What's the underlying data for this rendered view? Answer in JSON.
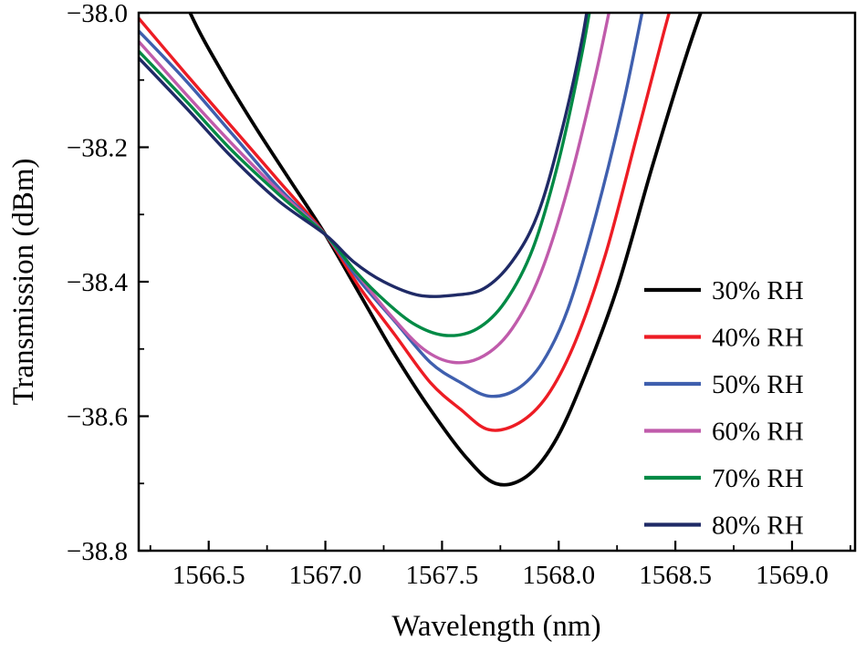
{
  "figure": {
    "background": "#ffffff",
    "frame_color": "#000000"
  },
  "chart_data": {
    "type": "line",
    "title": "",
    "xlabel": "Wavelength (nm)",
    "ylabel": "Transmission (dBm)",
    "xlim": [
      1566.2,
      1569.27
    ],
    "ylim": [
      -38.8,
      -38.0
    ],
    "grid": false,
    "legend_position": "right-middle",
    "x_major_ticks": [
      1566.5,
      1567.0,
      1567.5,
      1568.0,
      1568.5,
      1569.0
    ],
    "x_tick_labels": [
      "1566.5",
      "1567.0",
      "1567.5",
      "1568.0",
      "1568.5",
      "1569.0"
    ],
    "x_minor_ticks": [
      1566.25,
      1566.75,
      1567.25,
      1567.75,
      1568.25,
      1568.75,
      1569.25
    ],
    "y_major_ticks": [
      -38.0,
      -38.2,
      -38.4,
      -38.6,
      -38.8
    ],
    "y_tick_labels": [
      "−38.0",
      "−38.2",
      "−38.4",
      "−38.6",
      "−38.8"
    ],
    "y_minor_ticks": [
      -38.1,
      -38.3,
      -38.5,
      -38.7
    ],
    "crossing_point": {
      "x": 1567.0,
      "y": -38.33
    },
    "series": [
      {
        "name": "30% RH",
        "color": "#000000",
        "dip_min": {
          "x": 1567.73,
          "y": -38.7
        },
        "points": [
          [
            1566.28,
            -37.88
          ],
          [
            1566.42,
            -38.0
          ],
          [
            1566.56,
            -38.09
          ],
          [
            1566.7,
            -38.17
          ],
          [
            1566.85,
            -38.25
          ],
          [
            1567.0,
            -38.33
          ],
          [
            1567.15,
            -38.42
          ],
          [
            1567.3,
            -38.51
          ],
          [
            1567.45,
            -38.59
          ],
          [
            1567.6,
            -38.66
          ],
          [
            1567.73,
            -38.7
          ],
          [
            1567.86,
            -38.69
          ],
          [
            1567.98,
            -38.64
          ],
          [
            1568.1,
            -38.55
          ],
          [
            1568.25,
            -38.41
          ],
          [
            1568.4,
            -38.23
          ],
          [
            1568.55,
            -38.06
          ],
          [
            1568.66,
            -37.95
          ]
        ]
      },
      {
        "name": "40% RH",
        "color": "#ed1c24",
        "dip_min": {
          "x": 1567.7,
          "y": -38.62
        },
        "points": [
          [
            1566.18,
            -38.0
          ],
          [
            1566.4,
            -38.09
          ],
          [
            1566.6,
            -38.17
          ],
          [
            1566.8,
            -38.25
          ],
          [
            1567.0,
            -38.33
          ],
          [
            1567.15,
            -38.41
          ],
          [
            1567.3,
            -38.48
          ],
          [
            1567.45,
            -38.55
          ],
          [
            1567.58,
            -38.59
          ],
          [
            1567.7,
            -38.62
          ],
          [
            1567.83,
            -38.61
          ],
          [
            1567.95,
            -38.57
          ],
          [
            1568.07,
            -38.49
          ],
          [
            1568.2,
            -38.36
          ],
          [
            1568.33,
            -38.19
          ],
          [
            1568.45,
            -38.03
          ],
          [
            1568.52,
            -37.94
          ]
        ]
      },
      {
        "name": "50% RH",
        "color": "#3f5fae",
        "dip_min": {
          "x": 1567.7,
          "y": -38.57
        },
        "points": [
          [
            1566.18,
            -38.02
          ],
          [
            1566.4,
            -38.1
          ],
          [
            1566.6,
            -38.18
          ],
          [
            1566.8,
            -38.26
          ],
          [
            1567.0,
            -38.33
          ],
          [
            1567.15,
            -38.4
          ],
          [
            1567.3,
            -38.46
          ],
          [
            1567.45,
            -38.52
          ],
          [
            1567.58,
            -38.55
          ],
          [
            1567.7,
            -38.57
          ],
          [
            1567.82,
            -38.56
          ],
          [
            1567.93,
            -38.52
          ],
          [
            1568.04,
            -38.44
          ],
          [
            1568.16,
            -38.3
          ],
          [
            1568.28,
            -38.13
          ],
          [
            1568.38,
            -37.96
          ]
        ]
      },
      {
        "name": "60% RH",
        "color": "#c05bab",
        "dip_min": {
          "x": 1567.55,
          "y": -38.52
        },
        "points": [
          [
            1566.18,
            -38.035
          ],
          [
            1566.4,
            -38.12
          ],
          [
            1566.6,
            -38.195
          ],
          [
            1566.8,
            -38.265
          ],
          [
            1567.0,
            -38.33
          ],
          [
            1567.14,
            -38.39
          ],
          [
            1567.28,
            -38.45
          ],
          [
            1567.42,
            -38.5
          ],
          [
            1567.55,
            -38.52
          ],
          [
            1567.68,
            -38.51
          ],
          [
            1567.8,
            -38.47
          ],
          [
            1567.92,
            -38.39
          ],
          [
            1568.04,
            -38.26
          ],
          [
            1568.16,
            -38.09
          ],
          [
            1568.25,
            -37.94
          ]
        ]
      },
      {
        "name": "70% RH",
        "color": "#008a45",
        "dip_min": {
          "x": 1567.52,
          "y": -38.48
        },
        "points": [
          [
            1566.18,
            -38.05
          ],
          [
            1566.4,
            -38.13
          ],
          [
            1566.6,
            -38.205
          ],
          [
            1566.8,
            -38.27
          ],
          [
            1567.0,
            -38.33
          ],
          [
            1567.13,
            -38.385
          ],
          [
            1567.26,
            -38.43
          ],
          [
            1567.39,
            -38.465
          ],
          [
            1567.52,
            -38.48
          ],
          [
            1567.65,
            -38.47
          ],
          [
            1567.77,
            -38.43
          ],
          [
            1567.89,
            -38.35
          ],
          [
            1568.0,
            -38.22
          ],
          [
            1568.1,
            -38.06
          ],
          [
            1568.16,
            -37.94
          ]
        ]
      },
      {
        "name": "80% RH",
        "color": "#1f2a66",
        "dip_min": {
          "x": 1567.47,
          "y": -38.42
        },
        "points": [
          [
            1566.18,
            -38.06
          ],
          [
            1566.4,
            -38.14
          ],
          [
            1566.6,
            -38.215
          ],
          [
            1566.8,
            -38.28
          ],
          [
            1567.0,
            -38.33
          ],
          [
            1567.12,
            -38.37
          ],
          [
            1567.25,
            -38.4
          ],
          [
            1567.4,
            -38.42
          ],
          [
            1567.55,
            -38.42
          ],
          [
            1567.68,
            -38.41
          ],
          [
            1567.8,
            -38.37
          ],
          [
            1567.91,
            -38.3
          ],
          [
            1568.01,
            -38.18
          ],
          [
            1568.1,
            -38.04
          ],
          [
            1568.15,
            -37.93
          ]
        ]
      }
    ]
  }
}
